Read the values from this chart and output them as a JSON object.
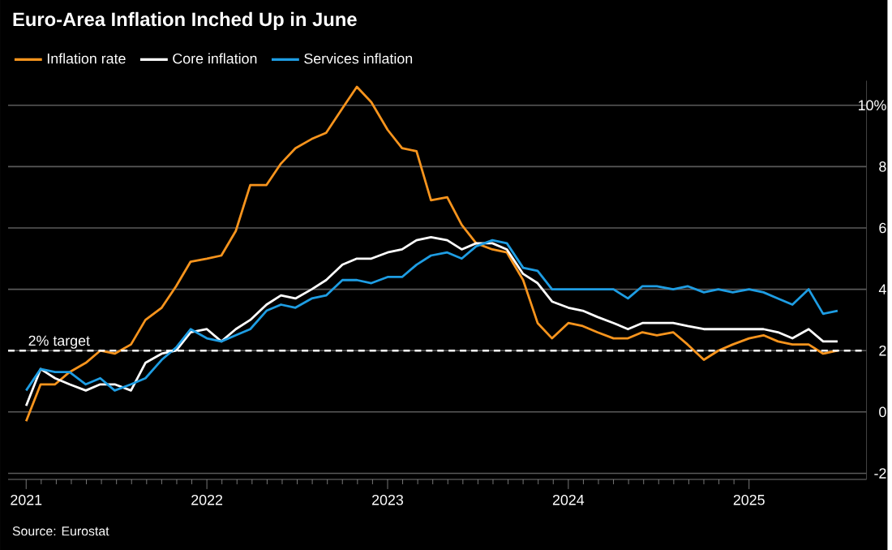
{
  "chart_data": {
    "type": "line",
    "title": "Euro-Area Inflation Inched Up in June",
    "x": [
      "2020-12-31",
      "2021-01-31",
      "2021-02-28",
      "2021-03-31",
      "2021-04-30",
      "2021-05-31",
      "2021-06-30",
      "2021-07-31",
      "2021-08-31",
      "2021-09-30",
      "2021-10-31",
      "2021-11-30",
      "2021-12-31",
      "2022-01-31",
      "2022-02-28",
      "2022-03-31",
      "2022-04-30",
      "2022-05-31",
      "2022-06-30",
      "2022-07-31",
      "2022-08-31",
      "2022-09-30",
      "2022-10-31",
      "2022-11-30",
      "2022-12-31",
      "2023-01-31",
      "2023-02-28",
      "2023-03-31",
      "2023-04-30",
      "2023-05-31",
      "2023-06-30",
      "2023-07-31",
      "2023-08-31",
      "2023-09-30",
      "2023-10-31",
      "2023-11-30",
      "2023-12-31",
      "2024-01-31",
      "2024-02-29",
      "2024-03-31",
      "2024-04-30",
      "2024-05-31",
      "2024-06-30",
      "2024-07-31",
      "2024-08-31",
      "2024-09-30",
      "2024-10-31",
      "2024-11-30",
      "2024-12-31",
      "2025-01-31",
      "2025-02-28",
      "2025-03-31",
      "2025-04-30",
      "2025-05-31",
      "2025-06-30"
    ],
    "series": [
      {
        "name": "Inflation rate",
        "color": "#f7941d",
        "values": [
          -0.3,
          0.9,
          0.9,
          1.3,
          1.6,
          2.0,
          1.9,
          2.2,
          3.0,
          3.4,
          4.1,
          4.9,
          5.0,
          5.1,
          5.9,
          7.4,
          7.4,
          8.1,
          8.6,
          8.9,
          9.1,
          9.9,
          10.6,
          10.1,
          9.2,
          8.6,
          8.5,
          6.9,
          7.0,
          6.1,
          5.5,
          5.3,
          5.2,
          4.3,
          2.9,
          2.4,
          2.9,
          2.8,
          2.6,
          2.4,
          2.4,
          2.6,
          2.5,
          2.6,
          2.2,
          1.7,
          2.0,
          2.2,
          2.4,
          2.5,
          2.3,
          2.2,
          2.2,
          1.9,
          2.0
        ]
      },
      {
        "name": "Core inflation",
        "color": "#ffffff",
        "values": [
          0.2,
          1.4,
          1.1,
          0.9,
          0.7,
          0.9,
          0.9,
          0.7,
          1.6,
          1.9,
          2.0,
          2.6,
          2.7,
          2.3,
          2.7,
          3.0,
          3.5,
          3.8,
          3.7,
          4.0,
          4.3,
          4.8,
          5.0,
          5.0,
          5.2,
          5.3,
          5.6,
          5.7,
          5.6,
          5.3,
          5.5,
          5.5,
          5.3,
          4.5,
          4.2,
          3.6,
          3.4,
          3.3,
          3.1,
          2.9,
          2.7,
          2.9,
          2.9,
          2.9,
          2.8,
          2.7,
          2.7,
          2.7,
          2.7,
          2.7,
          2.6,
          2.4,
          2.7,
          2.3,
          2.3
        ]
      },
      {
        "name": "Services inflation",
        "color": "#1e9de3",
        "values": [
          0.7,
          1.4,
          1.3,
          1.3,
          0.9,
          1.1,
          0.7,
          0.9,
          1.1,
          1.7,
          2.1,
          2.7,
          2.4,
          2.3,
          2.5,
          2.7,
          3.3,
          3.5,
          3.4,
          3.7,
          3.8,
          4.3,
          4.3,
          4.2,
          4.4,
          4.4,
          4.8,
          5.1,
          5.2,
          5.0,
          5.4,
          5.6,
          5.5,
          4.7,
          4.6,
          4.0,
          4.0,
          4.0,
          4.0,
          4.0,
          3.7,
          4.1,
          4.1,
          4.0,
          4.1,
          3.9,
          4.0,
          3.9,
          4.0,
          3.9,
          3.7,
          3.5,
          4.0,
          3.2,
          3.3
        ]
      }
    ],
    "xlim": [
      "2020-11-24",
      "2025-08-25"
    ],
    "xticks": [
      {
        "value": "2021-01-01",
        "label": "2021"
      },
      {
        "value": "2022-01-01",
        "label": "2022"
      },
      {
        "value": "2023-01-01",
        "label": "2023"
      },
      {
        "value": "2024-01-01",
        "label": "2024"
      },
      {
        "value": "2025-01-01",
        "label": "2025"
      }
    ],
    "ylim": [
      -2.2,
      10.8
    ],
    "yticks": [
      -2,
      0,
      2,
      4,
      6,
      8,
      {
        "value": 10,
        "label": "10%"
      }
    ],
    "ref_lines": [
      {
        "axis": "y",
        "value": 2,
        "label": "2% target",
        "color": "#ffffff",
        "line_style": "dashed"
      }
    ],
    "annotations": [
      "Source: Eurostat"
    ],
    "grid": "y",
    "legend": "top left",
    "line_style": "solid"
  }
}
